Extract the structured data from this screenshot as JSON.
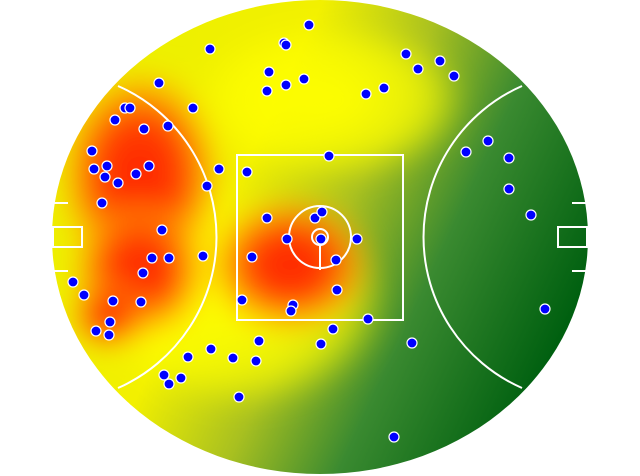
{
  "chart_data": {
    "type": "scatter",
    "color": "#0000ff",
    "x": [
      309,
      210,
      284,
      286,
      406,
      440,
      418,
      454,
      269,
      304,
      286,
      267,
      384,
      366,
      159,
      193,
      125,
      130,
      115,
      144,
      168,
      92,
      107,
      94,
      149,
      105,
      118,
      136,
      219,
      247,
      207,
      329,
      466,
      488,
      509,
      509,
      102,
      531,
      267,
      315,
      322,
      162,
      287,
      321,
      357,
      203,
      252,
      152,
      169,
      336,
      143,
      73,
      84,
      113,
      141,
      242,
      337,
      293,
      291,
      545,
      368,
      110,
      96,
      109,
      333,
      259,
      321,
      412,
      211,
      188,
      233,
      256,
      164,
      181,
      169,
      239,
      394
    ],
    "y": [
      25,
      49,
      43,
      45,
      54,
      61,
      69,
      76,
      72,
      79,
      85,
      91,
      88,
      94,
      83,
      108,
      108,
      108,
      120,
      129,
      126,
      151,
      166,
      169,
      166,
      177,
      183,
      174,
      169,
      172,
      186,
      156,
      152,
      141,
      158,
      189,
      203,
      215,
      218,
      218,
      212,
      230,
      239,
      239,
      239,
      256,
      257,
      258,
      258,
      260,
      273,
      282,
      295,
      301,
      302,
      300,
      290,
      305,
      311,
      309,
      319,
      322,
      331,
      335,
      329,
      341,
      344,
      343,
      349,
      357,
      358,
      361,
      375,
      378,
      384,
      397,
      437
    ]
  }
}
